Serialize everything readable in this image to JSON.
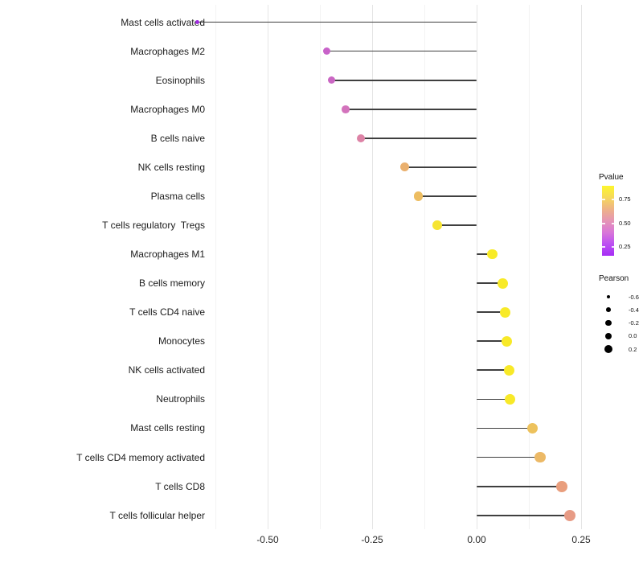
{
  "chart_data": {
    "type": "lollipop",
    "title": "",
    "xlabel": "",
    "ylabel": "",
    "baseline": 0,
    "x_axis": {
      "tick_labels": [
        "-0.50",
        "-0.25",
        "0.00",
        "0.25"
      ],
      "tick_values": [
        -0.5,
        -0.25,
        0.0,
        0.25
      ],
      "minor_tick_values": [
        -0.625,
        -0.375,
        -0.125,
        0.125
      ],
      "range": [
        -0.712,
        0.27
      ],
      "grid": "vertical-only"
    },
    "points": [
      {
        "label": "Mast cells activated",
        "pearson": -0.668,
        "color": "#a02be0"
      },
      {
        "label": "Macrophages M2",
        "pearson": -0.358,
        "color": "#c862c9"
      },
      {
        "label": "Eosinophils",
        "pearson": -0.347,
        "color": "#ca66c3"
      },
      {
        "label": "Macrophages M0",
        "pearson": -0.313,
        "color": "#d373bc"
      },
      {
        "label": "B cells naive",
        "pearson": -0.277,
        "color": "#dd83a6"
      },
      {
        "label": "NK cells resting",
        "pearson": -0.173,
        "color": "#eab06e"
      },
      {
        "label": "Plasma cells",
        "pearson": -0.14,
        "color": "#edbd61"
      },
      {
        "label": "T cells regulatory  Tregs",
        "pearson": -0.094,
        "color": "#f6e431"
      },
      {
        "label": "Macrophages M1",
        "pearson": 0.038,
        "color": "#f8eb28"
      },
      {
        "label": "B cells memory",
        "pearson": 0.063,
        "color": "#f8ea28"
      },
      {
        "label": "T cells CD4 naive",
        "pearson": 0.068,
        "color": "#f8ea28"
      },
      {
        "label": "Monocytes",
        "pearson": 0.072,
        "color": "#f8e928"
      },
      {
        "label": "NK cells activated",
        "pearson": 0.078,
        "color": "#f8e928"
      },
      {
        "label": "Neutrophils",
        "pearson": 0.08,
        "color": "#f8e928"
      },
      {
        "label": "Mast cells resting",
        "pearson": 0.134,
        "color": "#edc25d"
      },
      {
        "label": "T cells CD4 memory activated",
        "pearson": 0.152,
        "color": "#ecb966"
      },
      {
        "label": "T cells CD8",
        "pearson": 0.204,
        "color": "#e99e7d"
      },
      {
        "label": "T cells follicular helper",
        "pearson": 0.223,
        "color": "#e79b85"
      }
    ],
    "legend_pvalue": {
      "title": "Pvalue",
      "tick_labels": [
        "0.75",
        "0.50",
        "0.25"
      ],
      "gradient_top_to_bottom": [
        "#fdf62c",
        "#f6d95b",
        "#eeb287",
        "#e595b5",
        "#d977d8",
        "#bc50f2",
        "#a62df5"
      ]
    },
    "legend_pearson": {
      "title": "Pearson",
      "item_labels": [
        "-0.6",
        "-0.4",
        "-0.2",
        "0.0",
        "0.2"
      ],
      "item_values": [
        -0.6,
        -0.4,
        -0.2,
        0.0,
        0.2
      ]
    }
  },
  "colors": {
    "stem": "#3f3f3f",
    "grid_major": "#e5e5e5",
    "grid_minor": "#f3f3f3",
    "text": "#1c1c1c",
    "background": "#ffffff"
  }
}
